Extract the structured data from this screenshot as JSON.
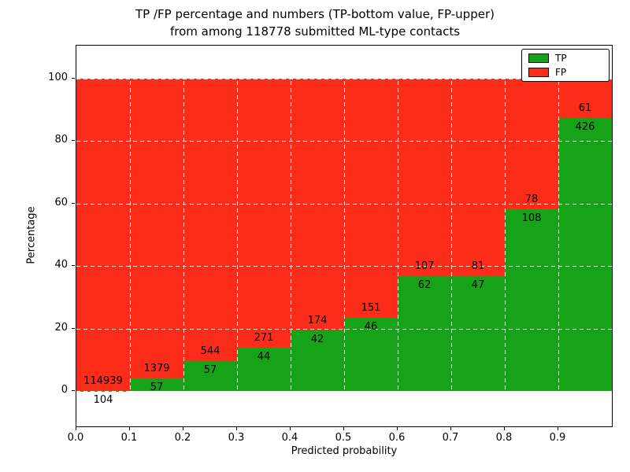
{
  "title": {
    "line1": "TP /FP percentage and numbers (TP-bottom value, FP-upper)",
    "line2": "from among 118778 submitted ML-type contacts"
  },
  "chart_data": {
    "type": "bar",
    "stacked": true,
    "normalized_to_percent": true,
    "title": "TP /FP percentage and numbers (TP-bottom value, FP-upper) from among 118778 submitted ML-type contacts",
    "xlabel": "Predicted probability",
    "ylabel": "Percentage",
    "total_submitted": 118778,
    "bin_edges": [
      0.0,
      0.1,
      0.2,
      0.3,
      0.4,
      0.5,
      0.6,
      0.7,
      0.8,
      0.9,
      1.0
    ],
    "x_tick_labels": [
      "0.0",
      "0.1",
      "0.2",
      "0.3",
      "0.4",
      "0.5",
      "0.6",
      "0.7",
      "0.8",
      "0.9"
    ],
    "y_ticks": [
      0,
      20,
      40,
      60,
      80,
      100
    ],
    "xlim": [
      0.0,
      1.0
    ],
    "ylim": [
      -11,
      110.5
    ],
    "grid": true,
    "grid_color": "#ffffff",
    "series": [
      {
        "name": "TP",
        "color": "#17a317",
        "counts": [
          104,
          57,
          57,
          44,
          42,
          46,
          62,
          47,
          108,
          426
        ]
      },
      {
        "name": "FP",
        "color": "#fb2d1a",
        "counts": [
          114939,
          1379,
          544,
          271,
          174,
          151,
          107,
          81,
          78,
          61
        ]
      }
    ],
    "tp_percent_by_bin": [
      0.09,
      3.97,
      9.48,
      13.97,
      19.44,
      23.35,
      36.69,
      36.72,
      58.06,
      87.47
    ],
    "legend": {
      "position": "upper right",
      "entries": [
        {
          "label": "TP"
        },
        {
          "label": "FP"
        }
      ]
    }
  }
}
